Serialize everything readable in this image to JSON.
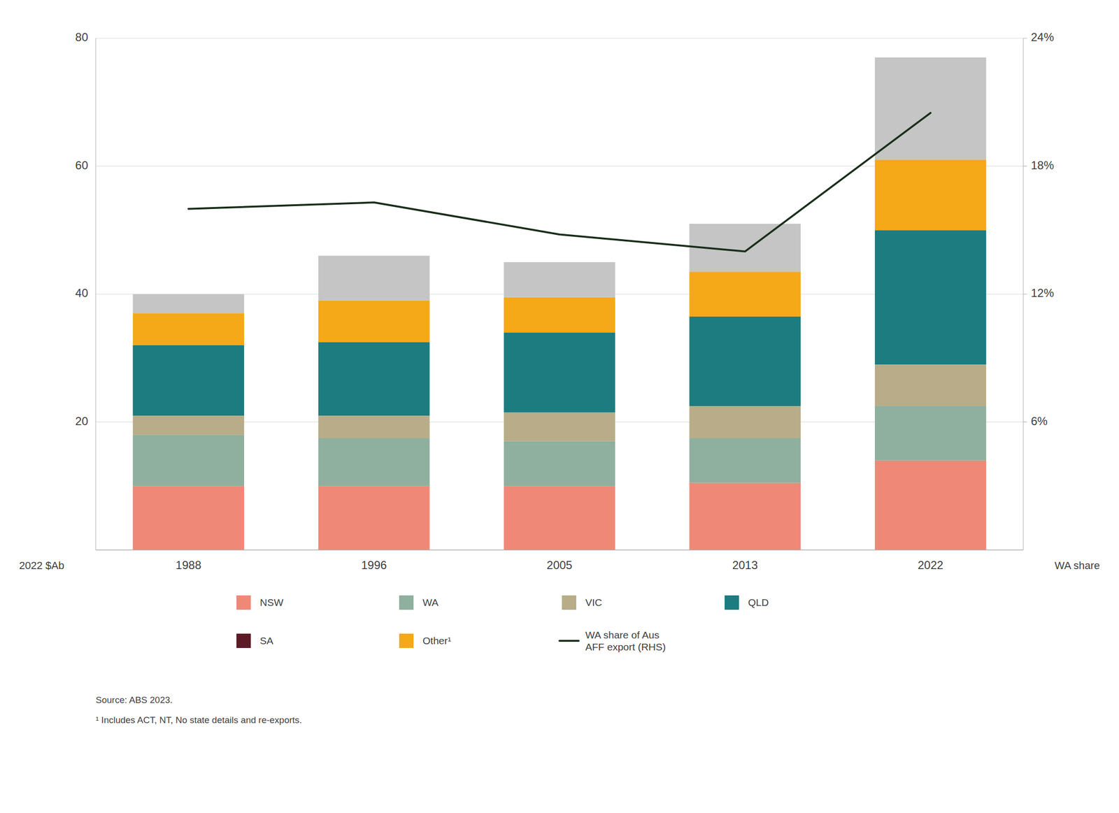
{
  "chart_data": {
    "type": "bar",
    "stacked": true,
    "grid": true,
    "legend": "bottom",
    "categories": [
      "1988",
      "1996",
      "2005",
      "2013",
      "2022"
    ],
    "ylabel": "2022 $Ab",
    "y2label": "WA share",
    "ylim": [
      0,
      80
    ],
    "yticks": [
      20,
      40,
      60,
      80
    ],
    "y2lim": [
      0,
      0.24
    ],
    "y2ticks": [
      {
        "value": 0.06,
        "label": "6%"
      },
      {
        "value": 0.12,
        "label": "12%"
      },
      {
        "value": 0.18,
        "label": "18%"
      },
      {
        "value": 0.24,
        "label": "24%"
      }
    ],
    "series": [
      {
        "name": "NSW",
        "color": "#F08878",
        "values": [
          10.0,
          10.0,
          10.0,
          10.5,
          14.0
        ]
      },
      {
        "name": "WA",
        "color": "#8FAF9F",
        "values": [
          8.0,
          7.5,
          7.0,
          7.0,
          8.5
        ]
      },
      {
        "name": "VIC",
        "color": "#B8AD88",
        "values": [
          3.0,
          3.5,
          4.5,
          5.0,
          6.5
        ]
      },
      {
        "name": "QLD",
        "color": "#1C7C80",
        "values": [
          11.0,
          11.5,
          12.5,
          14.0,
          21.0
        ]
      },
      {
        "name": "SA",
        "color": "#5C1A27",
        "values": [
          null,
          null,
          null,
          null,
          null
        ]
      },
      {
        "name": "Other¹",
        "color": "#F5A818",
        "values": [
          5.0,
          6.5,
          5.5,
          7.0,
          11.0
        ]
      },
      {
        "color": "#C5C5C5",
        "values": [
          3.0,
          7.0,
          5.5,
          7.5,
          16.0
        ]
      },
      {
        "name": "WA share of Aus\nAFF export (RHS)",
        "type": "line",
        "axis": "y2",
        "color": "#1A2E1A",
        "values": [
          0.16,
          0.163,
          0.148,
          0.14,
          0.205
        ]
      }
    ],
    "annotations": [
      "Source: ABS 2023.",
      "¹ Includes ACT, NT, No state details and re-exports."
    ]
  }
}
